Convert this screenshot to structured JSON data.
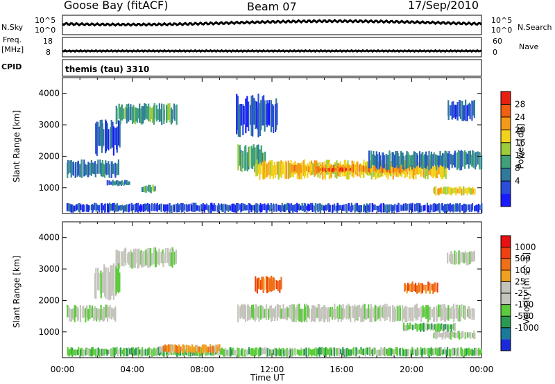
{
  "header": {
    "station": "Goose Bay (fitACF)",
    "beam": "Beam 07",
    "date": "17/Sep/2010"
  },
  "strips": {
    "nsky_label": "N.Sky",
    "nsky_ticks": [
      "10^5",
      "10^0"
    ],
    "nsearch_label": "N.Search",
    "nsearch_ticks": [
      "10^5",
      "10^0"
    ],
    "freq_label_line1": "Freq.",
    "freq_label_line2": "[MHz]",
    "freq_ticks": [
      "18",
      "8"
    ],
    "nave_label": "Nave",
    "nave_ticks": [
      "60",
      "0"
    ],
    "cpid_label": "CPID",
    "cpid_value": "themis (tau) 3310"
  },
  "chart_data": [
    {
      "type": "heatmap",
      "name": "power",
      "ylabel": "Slant Range [km]",
      "ylim": [
        180,
        4500
      ],
      "yticks": [
        "1000",
        "2000",
        "3000",
        "4000"
      ],
      "xlim_hours": [
        0,
        24
      ],
      "colorbar": {
        "label": "Power [dB]",
        "ticks": [
          "28",
          "24",
          "20",
          "16",
          "12",
          "8",
          "4"
        ],
        "colors": [
          "#1a1aff",
          "#2a4ed8",
          "#2f7a9a",
          "#3fa07a",
          "#9ccc3c",
          "#f2d21c",
          "#f59a18",
          "#f06010",
          "#e82010"
        ]
      },
      "bands": [
        {
          "t": [
            0.2,
            24
          ],
          "r": [
            200,
            520
          ],
          "level": 1
        },
        {
          "t": [
            0.2,
            3.2
          ],
          "r": [
            1300,
            1900
          ],
          "level": 2
        },
        {
          "t": [
            1.8,
            3.3
          ],
          "r": [
            2000,
            3200
          ],
          "level": 1
        },
        {
          "t": [
            3.0,
            6.5
          ],
          "r": [
            3000,
            3700
          ],
          "level": 3
        },
        {
          "t": [
            2.5,
            3.8
          ],
          "r": [
            1050,
            1250
          ],
          "level": 2
        },
        {
          "t": [
            4.5,
            5.3
          ],
          "r": [
            820,
            1100
          ],
          "level": 3
        },
        {
          "t": [
            9.9,
            12.3
          ],
          "r": [
            2600,
            4000
          ],
          "level": 1
        },
        {
          "t": [
            10.0,
            11.6
          ],
          "r": [
            1400,
            2400
          ],
          "level": 3
        },
        {
          "t": [
            11.0,
            22.0
          ],
          "r": [
            1250,
            1900
          ],
          "level": 5
        },
        {
          "t": [
            13.0,
            20.0
          ],
          "r": [
            1450,
            1750
          ],
          "level": 6
        },
        {
          "t": [
            14.5,
            16.5
          ],
          "r": [
            1500,
            1650
          ],
          "level": 7
        },
        {
          "t": [
            21.2,
            23.6
          ],
          "r": [
            750,
            1050
          ],
          "level": 5
        },
        {
          "t": [
            17.5,
            24.0
          ],
          "r": [
            1550,
            2200
          ],
          "level": 2
        },
        {
          "t": [
            22.0,
            23.6
          ],
          "r": [
            3100,
            3800
          ],
          "level": 1
        }
      ]
    },
    {
      "type": "heatmap",
      "name": "velocity",
      "ylabel": "Slant Range [km]",
      "ylim": [
        180,
        4500
      ],
      "yticks": [
        "1000",
        "2000",
        "3000",
        "4000"
      ],
      "xlim_hours": [
        0,
        24
      ],
      "xlabel": "Time UT",
      "xticks": [
        "00:00",
        "04:00",
        "08:00",
        "12:00",
        "16:00",
        "20:00",
        "00:00"
      ],
      "colorbar": {
        "label": "Velocity [m s^-1]",
        "ticks": [
          "1000",
          "500",
          "100",
          "25",
          "-25",
          "-100",
          "-500",
          "-1000"
        ],
        "colors": [
          "#1a2ad8",
          "#1a7a9a",
          "#2a9a52",
          "#5ccc3c",
          "#c4c4bc",
          "#c4c4bc",
          "#f0a020",
          "#f07018",
          "#f04010",
          "#e81010"
        ]
      },
      "bands": [
        {
          "t": [
            0.2,
            24
          ],
          "r": [
            200,
            520
          ],
          "level": 3
        },
        {
          "t": [
            3.0,
            6.5
          ],
          "r": [
            3000,
            3700
          ],
          "level": 4
        },
        {
          "t": [
            1.8,
            3.3
          ],
          "r": [
            2000,
            3200
          ],
          "level": 4
        },
        {
          "t": [
            0.2,
            3.0
          ],
          "r": [
            1300,
            1900
          ],
          "level": 4
        },
        {
          "t": [
            10.0,
            23.6
          ],
          "r": [
            1300,
            1900
          ],
          "level": 4
        },
        {
          "t": [
            11.0,
            12.5
          ],
          "r": [
            2200,
            2800
          ],
          "level": 7
        },
        {
          "t": [
            19.5,
            21.5
          ],
          "r": [
            2200,
            2600
          ],
          "level": 7
        },
        {
          "t": [
            5.5,
            9.0
          ],
          "r": [
            300,
            620
          ],
          "level": 6
        },
        {
          "t": [
            21.2,
            23.6
          ],
          "r": [
            750,
            1050
          ],
          "level": 4
        },
        {
          "t": [
            22.0,
            23.6
          ],
          "r": [
            3100,
            3600
          ],
          "level": 4
        },
        {
          "t": [
            19.5,
            22.5
          ],
          "r": [
            1000,
            1300
          ],
          "level": 3
        }
      ]
    }
  ]
}
